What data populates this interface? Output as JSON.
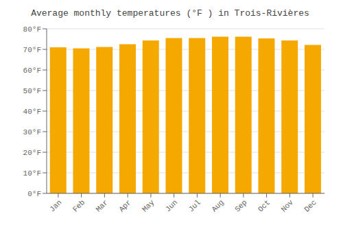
{
  "chart_data": {
    "type": "bar",
    "title": "Average monthly temperatures (°F ) in Trois-Rivières",
    "categories": [
      "Jan",
      "Feb",
      "Mar",
      "Apr",
      "May",
      "Jun",
      "Jul",
      "Aug",
      "Sep",
      "Oct",
      "Nov",
      "Dec"
    ],
    "values": [
      71.0,
      70.5,
      71.2,
      72.5,
      74.3,
      75.5,
      75.5,
      76.2,
      76.2,
      75.3,
      74.3,
      72.2
    ],
    "color": "#F5A800",
    "ylim": [
      0,
      80
    ],
    "yticks": [
      {
        "value": 0,
        "label": "0°F"
      },
      {
        "value": 10,
        "label": "10°F"
      },
      {
        "value": 20,
        "label": "20°F"
      },
      {
        "value": 30,
        "label": "30°F"
      },
      {
        "value": 40,
        "label": "40°F"
      },
      {
        "value": 50,
        "label": "50°F"
      },
      {
        "value": 60,
        "label": "60°F"
      },
      {
        "value": 70,
        "label": "70°F"
      },
      {
        "value": 80,
        "label": "80°F"
      }
    ],
    "grid": true
  }
}
